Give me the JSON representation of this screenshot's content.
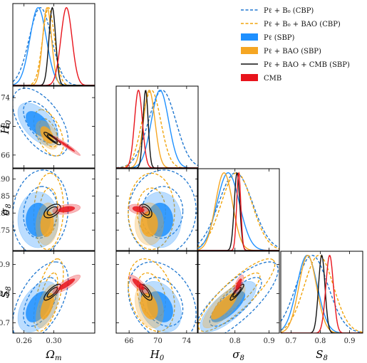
{
  "chart_data": {
    "type": "corner",
    "title": "",
    "parameters": [
      {
        "label": "Ω",
        "sub": "m",
        "range": [
          0.245,
          0.355
        ],
        "ticks": [
          "0.26",
          "0.30"
        ],
        "tickvals": [
          0.26,
          0.3
        ]
      },
      {
        "label": "H",
        "sub": "0",
        "range": [
          64.2,
          75.6
        ],
        "ticks": [
          "66",
          "70",
          "74"
        ],
        "tickvals": [
          66,
          70,
          74
        ]
      },
      {
        "label": "σ",
        "sub": "8",
        "range": [
          0.69,
          0.93
        ],
        "ticks": [
          "0.75",
          "0.80",
          "0.85",
          "0.90"
        ],
        "tickvals": [
          0.75,
          0.8,
          0.85,
          0.9
        ]
      },
      {
        "label": "S",
        "sub": "8",
        "range": [
          0.665,
          0.945
        ],
        "ticks": [
          "0.7",
          "0.8",
          "0.9"
        ],
        "tickvals": [
          0.7,
          0.8,
          0.9
        ]
      }
    ],
    "x_tick_sets": [
      [
        "0.26",
        "0.30"
      ],
      [
        "66",
        "70",
        "74"
      ],
      [
        "0.8",
        "0.9"
      ],
      [
        "0.7",
        "0.8",
        "0.9"
      ]
    ],
    "x_tick_vals": [
      [
        0.26,
        0.3
      ],
      [
        66,
        70,
        74
      ],
      [
        0.8,
        0.9
      ],
      [
        0.7,
        0.8,
        0.9
      ]
    ],
    "legend": [
      {
        "label": "Pℓ + B₀ (CBP)",
        "style": "dashed",
        "color": "#1f77d0"
      },
      {
        "label": "Pℓ + B₀ + BAO (CBP)",
        "style": "dashed",
        "color": "#f0a30a"
      },
      {
        "label": "Pℓ (SBP)",
        "style": "filled",
        "color": "#1e90ff"
      },
      {
        "label": "Pℓ + BAO (SBP)",
        "style": "filled",
        "color": "#f5a623"
      },
      {
        "label": "Pℓ + BAO + CMB (SBP)",
        "style": "solid",
        "color": "#111111"
      },
      {
        "label": "CMB",
        "style": "filled",
        "color": "#e8141c"
      }
    ],
    "series": [
      {
        "name": "Pℓ + B₀ (CBP)",
        "color": "#1f77d0",
        "style": "dashed",
        "mean": [
          0.282,
          70.6,
          0.802,
          0.772
        ],
        "sigma": [
          0.015,
          1.9,
          0.05,
          0.055
        ],
        "corr": [
          [
            1,
            -0.55,
            0.1,
            0.55
          ],
          [
            -0.55,
            1,
            0.05,
            -0.3
          ],
          [
            0.1,
            0.05,
            1,
            0.8
          ],
          [
            0.55,
            -0.3,
            0.8,
            1
          ]
        ]
      },
      {
        "name": "Pℓ + B₀ + BAO (CBP)",
        "color": "#f0a30a",
        "style": "dashed",
        "mean": [
          0.293,
          69.1,
          0.805,
          0.795
        ],
        "sigma": [
          0.008,
          1.3,
          0.045,
          0.05
        ],
        "corr": [
          [
            1,
            -0.5,
            0.1,
            0.6
          ],
          [
            -0.5,
            1,
            0,
            -0.3
          ],
          [
            0.1,
            0,
            1,
            0.85
          ],
          [
            0.6,
            -0.3,
            0.85,
            1
          ]
        ]
      },
      {
        "name": "Pℓ (SBP)",
        "color": "#1e90ff",
        "style": "filled",
        "mean": [
          0.279,
          70.3,
          0.78,
          0.755
        ],
        "sigma": [
          0.011,
          1.2,
          0.033,
          0.035
        ],
        "corr": [
          [
            1,
            -0.55,
            0,
            0.45
          ],
          [
            -0.55,
            1,
            0,
            -0.3
          ],
          [
            0,
            0,
            1,
            0.75
          ],
          [
            0.45,
            -0.3,
            0.75,
            1
          ]
        ]
      },
      {
        "name": "Pℓ + BAO (SBP)",
        "color": "#f5a623",
        "style": "filled",
        "mean": [
          0.291,
          68.8,
          0.768,
          0.757
        ],
        "sigma": [
          0.006,
          0.8,
          0.025,
          0.03
        ],
        "corr": [
          [
            1,
            -0.5,
            0.1,
            0.55
          ],
          [
            -0.5,
            1,
            0,
            -0.3
          ],
          [
            0.1,
            0,
            1,
            0.8
          ],
          [
            0.55,
            -0.3,
            0.8,
            1
          ]
        ]
      },
      {
        "name": "Pℓ + BAO + CMB (SBP)",
        "color": "#111111",
        "style": "solid",
        "mean": [
          0.298,
          68.3,
          0.806,
          0.805
        ],
        "sigma": [
          0.0045,
          0.35,
          0.008,
          0.011
        ],
        "corr": [
          [
            1,
            -0.9,
            0.5,
            0.8
          ],
          [
            -0.9,
            1,
            -0.4,
            -0.7
          ],
          [
            0.5,
            -0.4,
            1,
            0.9
          ],
          [
            0.8,
            -0.7,
            0.9,
            1
          ]
        ]
      },
      {
        "name": "CMB",
        "color": "#e8141c",
        "style": "filled",
        "mean": [
          0.317,
          67.3,
          0.811,
          0.832
        ],
        "sigma": [
          0.0075,
          0.55,
          0.006,
          0.013
        ],
        "corr": [
          [
            1,
            -0.97,
            0.35,
            0.85
          ],
          [
            -0.97,
            1,
            -0.3,
            -0.8
          ],
          [
            0.35,
            -0.3,
            1,
            0.7
          ],
          [
            0.85,
            -0.8,
            0.7,
            1
          ]
        ]
      }
    ]
  }
}
